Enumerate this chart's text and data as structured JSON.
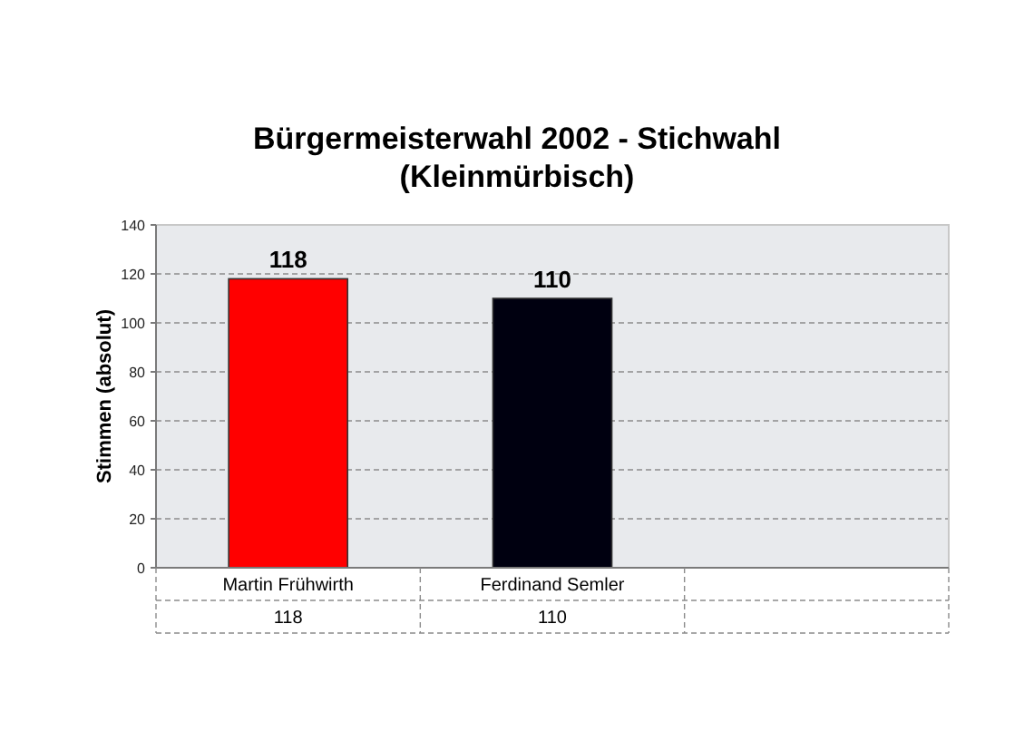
{
  "chart_data": {
    "type": "bar",
    "title": "Bürgermeisterwahl 2002 - Stichwahl\n(Kleinmürbisch)",
    "ylabel": "Stimmen (absolut)",
    "categories": [
      "Martin Frühwirth",
      "Ferdinand Semler",
      null
    ],
    "values": [
      118,
      110,
      null
    ],
    "colors": [
      "#ff0000",
      "#000010",
      null
    ],
    "data_labels": true,
    "annotations": [
      "118",
      "110"
    ],
    "ylim": [
      0,
      140
    ],
    "yticks": [
      0,
      20,
      40,
      60,
      80,
      100,
      120,
      140
    ],
    "grid": "y"
  }
}
